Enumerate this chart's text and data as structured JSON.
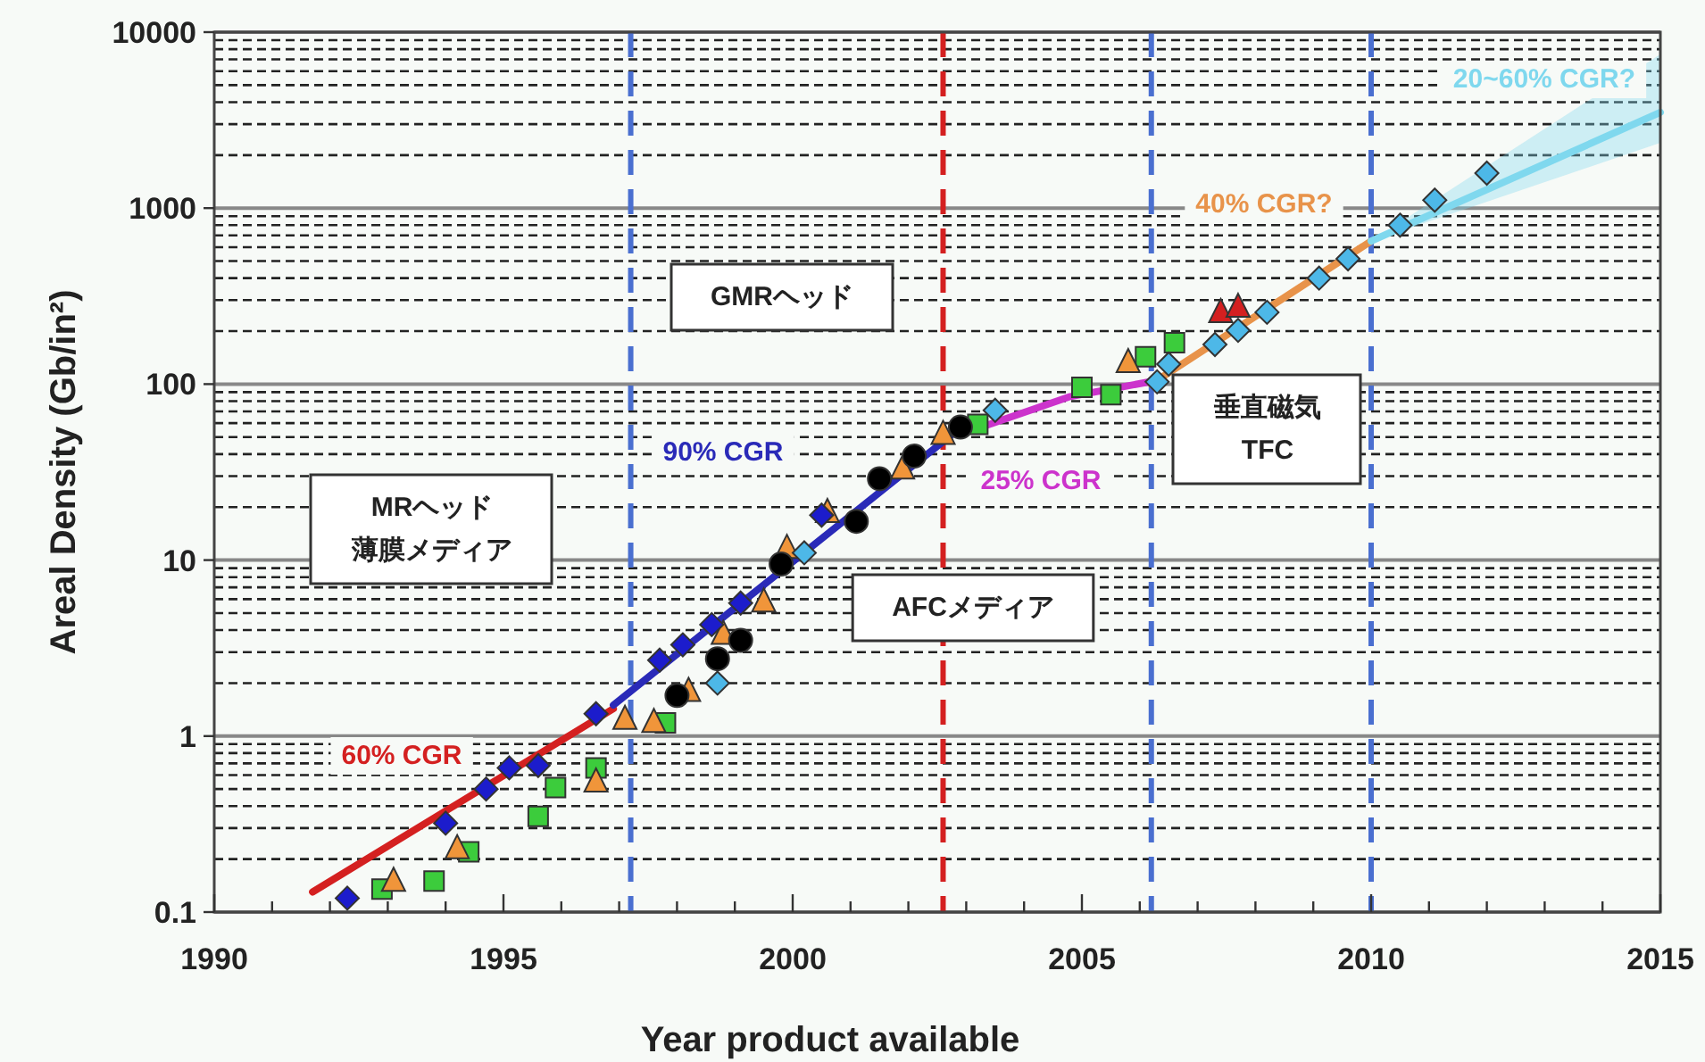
{
  "chart_data": {
    "type": "scatter",
    "xlabel": "Year product available",
    "ylabel": "Areal Density (Gb/in²)",
    "log": "y",
    "grid": "y",
    "xlim": [
      1990,
      2015
    ],
    "xticks": [
      1990,
      {
        "value": 1991,
        "label": null
      },
      {
        "value": 1992,
        "label": null
      },
      {
        "value": 1993,
        "label": null
      },
      {
        "value": 1994,
        "label": null
      },
      1995,
      {
        "value": 1996,
        "label": null
      },
      {
        "value": 1997,
        "label": null
      },
      {
        "value": 1998,
        "label": null
      },
      {
        "value": 1999,
        "label": null
      },
      2000,
      {
        "value": 2001,
        "label": null
      },
      {
        "value": 2002,
        "label": null
      },
      {
        "value": 2003,
        "label": null
      },
      {
        "value": 2004,
        "label": null
      },
      2005,
      {
        "value": 2006,
        "label": null
      },
      {
        "value": 2007,
        "label": null
      },
      {
        "value": 2008,
        "label": null
      },
      {
        "value": 2009,
        "label": null
      },
      2010,
      {
        "value": 2011,
        "label": null
      },
      {
        "value": 2012,
        "label": null
      },
      {
        "value": 2013,
        "label": null
      },
      {
        "value": 2014,
        "label": null
      },
      2015
    ],
    "ylim": [
      0.1,
      10000
    ],
    "yticks": [
      {
        "value": 0.1,
        "label": "0.1"
      },
      {
        "value": 0.2,
        "label": null
      },
      {
        "value": 0.3,
        "label": null
      },
      {
        "value": 0.4,
        "label": null
      },
      {
        "value": 0.5,
        "label": null
      },
      {
        "value": 0.6,
        "label": null
      },
      {
        "value": 0.7,
        "label": null
      },
      {
        "value": 0.8,
        "label": null
      },
      {
        "value": 0.9,
        "label": null
      },
      1,
      {
        "value": 2,
        "label": null
      },
      {
        "value": 3,
        "label": null
      },
      {
        "value": 4,
        "label": null
      },
      {
        "value": 5,
        "label": null
      },
      {
        "value": 6,
        "label": null
      },
      {
        "value": 7,
        "label": null
      },
      {
        "value": 8,
        "label": null
      },
      {
        "value": 9,
        "label": null
      },
      10,
      {
        "value": 20,
        "label": null
      },
      {
        "value": 30,
        "label": null
      },
      {
        "value": 40,
        "label": null
      },
      {
        "value": 50,
        "label": null
      },
      {
        "value": 60,
        "label": null
      },
      {
        "value": 70,
        "label": null
      },
      {
        "value": 80,
        "label": null
      },
      {
        "value": 90,
        "label": null
      },
      100,
      {
        "value": 200,
        "label": null
      },
      {
        "value": 300,
        "label": null
      },
      {
        "value": 400,
        "label": null
      },
      {
        "value": 500,
        "label": null
      },
      {
        "value": 600,
        "label": null
      },
      {
        "value": 700,
        "label": null
      },
      {
        "value": 800,
        "label": null
      },
      {
        "value": 900,
        "label": null
      },
      1000,
      {
        "value": 2000,
        "label": null
      },
      {
        "value": 3000,
        "label": null
      },
      {
        "value": 4000,
        "label": null
      },
      {
        "value": 5000,
        "label": null
      },
      {
        "value": 6000,
        "label": null
      },
      {
        "value": 7000,
        "label": null
      },
      {
        "value": 8000,
        "label": null
      },
      {
        "value": 9000,
        "label": null
      },
      10000
    ],
    "ref_lines": [
      {
        "axis": "x",
        "value": 1997.2,
        "color": "#4a6fd0",
        "line_style": "dashed"
      },
      {
        "axis": "x",
        "value": 2002.6,
        "color": "#d42020",
        "line_style": "dashed"
      },
      {
        "axis": "x",
        "value": 2006.2,
        "color": "#4a6fd0",
        "line_style": "dashed"
      },
      {
        "axis": "x",
        "value": 2010.0,
        "color": "#4a6fd0",
        "line_style": "dashed"
      }
    ],
    "series": [
      {
        "type": "line",
        "color": "#d42020",
        "marker": "none",
        "x": [
          1991.7,
          1996.9
        ],
        "values": [
          0.13,
          1.43
        ]
      },
      {
        "type": "line",
        "color": "#2a2ab8",
        "marker": "none",
        "x": [
          1996.9,
          2003.0
        ],
        "values": [
          1.5,
          60
        ]
      },
      {
        "type": "line",
        "color": "#cc33cc",
        "marker": "none",
        "x": [
          2003.2,
          2004.8,
          2006.3
        ],
        "values": [
          56,
          85,
          105
        ]
      },
      {
        "type": "line",
        "color": "#e8934a",
        "marker": "none",
        "x": [
          2006.2,
          2010.0
        ],
        "values": [
          100,
          650
        ]
      },
      {
        "type": "line",
        "color": "#7fd8ee",
        "marker": "none",
        "x": [
          2010.0,
          2015.0
        ],
        "values": [
          650,
          3500
        ],
        "lower": [
          650,
          2350
        ],
        "upper": [
          650,
          7500
        ]
      },
      {
        "type": "scatter",
        "color": "#3ccc3c",
        "marker": "square",
        "x": [
          1992.9,
          1993.8,
          1994.4,
          1995.6,
          1995.9,
          1996.6,
          1997.8,
          2003.2,
          2005.0,
          2005.5,
          2006.1,
          2006.6
        ],
        "values": [
          0.135,
          0.15,
          0.22,
          0.35,
          0.51,
          0.66,
          1.19,
          59,
          96,
          87,
          143,
          172
        ]
      },
      {
        "type": "scatter",
        "color": "#f0953a",
        "marker": "triangle",
        "x": [
          1993.1,
          1994.2,
          1996.6,
          1997.1,
          1997.6,
          1998.2,
          1998.8,
          1999.5,
          1999.9,
          2000.6,
          2001.9,
          2002.6,
          2005.8
        ],
        "values": [
          0.15,
          0.23,
          0.55,
          1.25,
          1.2,
          1.8,
          3.8,
          5.8,
          11.7,
          18.7,
          33,
          52,
          133
        ]
      },
      {
        "type": "scatter",
        "color": "#000000",
        "marker": "circle",
        "x": [
          1998.0,
          1998.7,
          1999.1,
          1999.8,
          2001.1,
          2001.5,
          2002.1,
          2002.9
        ],
        "values": [
          1.7,
          2.75,
          3.5,
          9.5,
          16.6,
          29,
          39,
          57
        ]
      },
      {
        "type": "scatter",
        "color": "#1c1ccc",
        "marker": "diamond",
        "x": [
          1992.3,
          1994.0,
          1994.7,
          1995.1,
          1995.6,
          1996.6,
          1997.7,
          1998.1,
          1998.6,
          1999.1,
          2000.5
        ],
        "values": [
          0.12,
          0.32,
          0.5,
          0.66,
          0.68,
          1.34,
          2.7,
          3.3,
          4.3,
          5.7,
          18
        ]
      },
      {
        "type": "scatter",
        "color": "#4db8e8",
        "marker": "diamond",
        "x": [
          1998.7,
          2000.2,
          2003.5,
          2006.3,
          2006.5,
          2007.3,
          2007.7,
          2008.2,
          2009.1,
          2009.6,
          2010.5,
          2011.1,
          2012.0
        ],
        "values": [
          2.0,
          11,
          71,
          103,
          130,
          168,
          202,
          256,
          400,
          515,
          800,
          1110,
          1580
        ]
      },
      {
        "type": "scatter",
        "color": "#d42020",
        "marker": "triangle",
        "x": [
          2007.4,
          2007.7
        ],
        "values": [
          256,
          274
        ]
      }
    ],
    "annotations": [
      "MRヘッド薄膜メディア",
      "GMRヘッド",
      "AFCメディア",
      "垂直磁気TFC",
      "60% CGR",
      "90% CGR",
      "25% CGR",
      "40% CGR?",
      "20~60% CGR?"
    ]
  }
}
